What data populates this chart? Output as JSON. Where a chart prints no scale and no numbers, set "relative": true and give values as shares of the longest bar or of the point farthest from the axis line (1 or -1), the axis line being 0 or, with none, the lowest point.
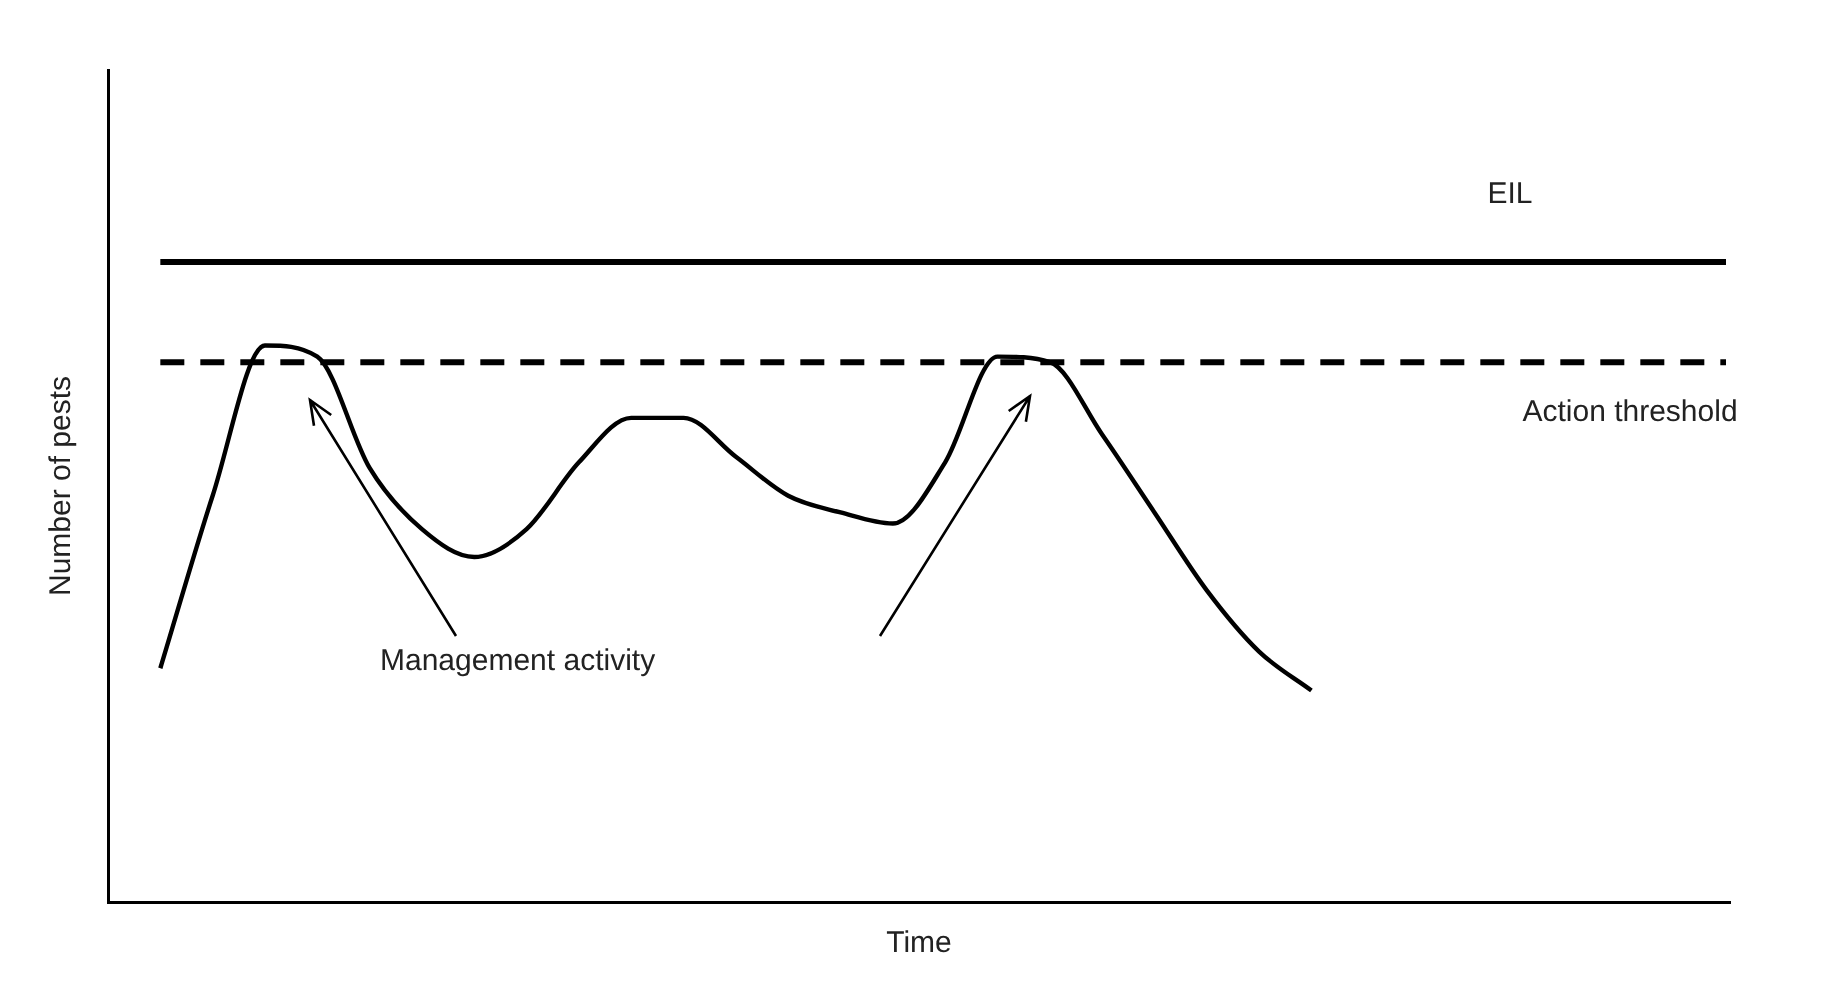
{
  "chart_data": {
    "type": "line",
    "xlabel": "Time",
    "ylabel": "Number of pests",
    "relative": true,
    "tick_labels": false,
    "categories": [
      null,
      null,
      null,
      null,
      null,
      null,
      null,
      null,
      null,
      null,
      null,
      null,
      null,
      null,
      null,
      null,
      null,
      null,
      null,
      null,
      null,
      null,
      null,
      null,
      null,
      null,
      null,
      null,
      null,
      null,
      null,
      null
    ],
    "series": [
      {
        "color": "#000000",
        "values": [
          null,
          0.42,
          0.73,
          1,
          0.98,
          0.78,
          0.67,
          0.62,
          0.67,
          0.79,
          0.87,
          0.87,
          0.8,
          0.73,
          0.7,
          0.68,
          0.79,
          0.98,
          0.97,
          0.84,
          0.7,
          0.56,
          0.45,
          0.38,
          null,
          null,
          null,
          null,
          null,
          null,
          null,
          null
        ]
      }
    ],
    "ref_lines": [
      {
        "axis": "y",
        "value": 1.15,
        "label": "EIL",
        "line_style": "solid",
        "color": "#000000"
      },
      {
        "axis": "y",
        "value": 0.97,
        "label": "Action threshold",
        "line_style": "dashed",
        "color": "#000000"
      }
    ],
    "annotations": [
      "Management activity"
    ],
    "marker": "none",
    "grid": false,
    "legend": false
  }
}
